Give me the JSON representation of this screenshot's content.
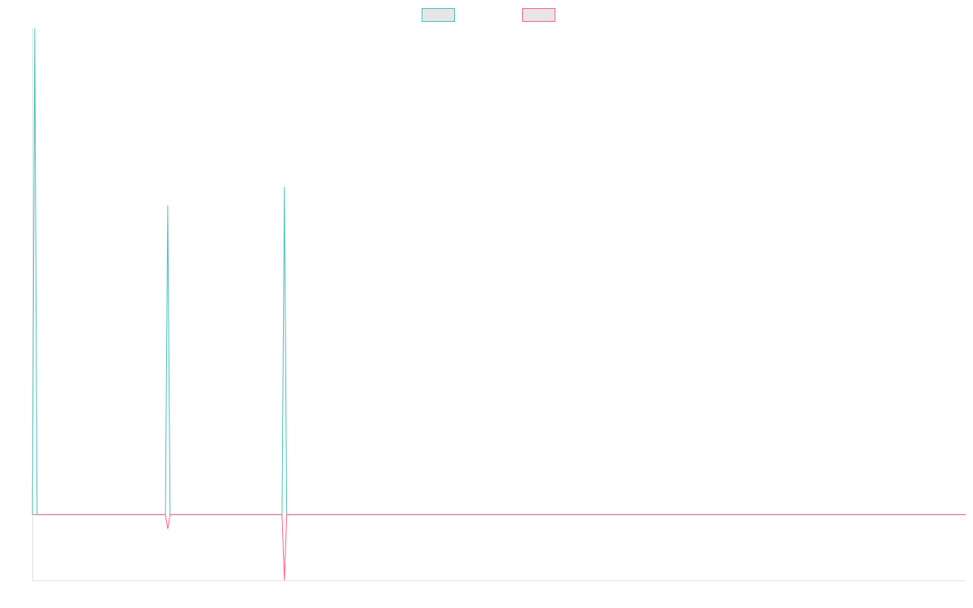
{
  "colors": {
    "background": "#ffffff",
    "axis": "#e1e1e1",
    "legend_fill": "#e6e6e6"
  },
  "chart_data": {
    "type": "line",
    "title": "",
    "xlabel": "",
    "ylabel": "",
    "grid": false,
    "legend_position": "top-center",
    "x_count": 401,
    "ylim": [
      -3.2,
      23.6
    ],
    "series": [
      {
        "color": "#4bc0c0",
        "legend_fill": "#e6e6e6",
        "points": [
          [
            0,
            0
          ],
          [
            1,
            23.6
          ],
          [
            2,
            0
          ],
          [
            57,
            0
          ],
          [
            58,
            15
          ],
          [
            59,
            0
          ],
          [
            107,
            0
          ],
          [
            108,
            15.9
          ],
          [
            109,
            0
          ],
          [
            400,
            0
          ]
        ]
      },
      {
        "color": "#ff6384",
        "legend_fill": "#e6e6e6",
        "points": [
          [
            0,
            0
          ],
          [
            57,
            0
          ],
          [
            58,
            -0.7
          ],
          [
            59,
            0
          ],
          [
            107,
            0
          ],
          [
            108,
            -3.2
          ],
          [
            109,
            0
          ],
          [
            400,
            0
          ]
        ]
      }
    ]
  }
}
